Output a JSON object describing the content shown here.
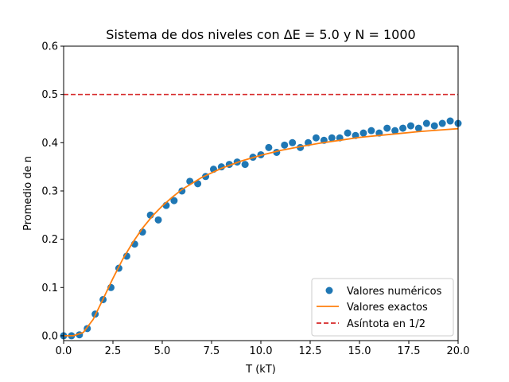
{
  "chart_data": {
    "type": "scatter",
    "title": "Sistema de dos niveles con ΔE =  5.0 y N =  1000",
    "xlabel": "T (kT)",
    "ylabel": "Promedio de n",
    "xlim": [
      0.0,
      20.0
    ],
    "ylim": [
      -0.01,
      0.6
    ],
    "xticks": [
      "0.0",
      "2.5",
      "5.0",
      "7.5",
      "10.0",
      "12.5",
      "15.0",
      "17.5",
      "20.0"
    ],
    "yticks": [
      "0.0",
      "0.1",
      "0.2",
      "0.3",
      "0.4",
      "0.5",
      "0.6"
    ],
    "grid": false,
    "legend_position": "lower-right",
    "series": [
      {
        "name": "Valores numéricos",
        "kind": "markers",
        "color": "#1f77b4",
        "x": [
          0.0,
          0.4,
          0.8,
          1.2,
          1.6,
          2.0,
          2.4,
          2.8,
          3.2,
          3.6,
          4.0,
          4.4,
          4.8,
          5.2,
          5.6,
          6.0,
          6.4,
          6.8,
          7.2,
          7.6,
          8.0,
          8.4,
          8.8,
          9.2,
          9.6,
          10.0,
          10.4,
          10.8,
          11.2,
          11.6,
          12.0,
          12.4,
          12.8,
          13.2,
          13.6,
          14.0,
          14.4,
          14.8,
          15.2,
          15.6,
          16.0,
          16.4,
          16.8,
          17.2,
          17.6,
          18.0,
          18.4,
          18.8,
          19.2,
          19.6,
          20.0
        ],
        "y": [
          0.0,
          0.0,
          0.002,
          0.015,
          0.045,
          0.075,
          0.1,
          0.14,
          0.165,
          0.19,
          0.215,
          0.25,
          0.24,
          0.27,
          0.28,
          0.3,
          0.32,
          0.315,
          0.33,
          0.345,
          0.35,
          0.355,
          0.36,
          0.355,
          0.37,
          0.375,
          0.39,
          0.38,
          0.395,
          0.4,
          0.39,
          0.4,
          0.41,
          0.405,
          0.41,
          0.41,
          0.42,
          0.415,
          0.42,
          0.425,
          0.42,
          0.43,
          0.425,
          0.43,
          0.435,
          0.43,
          0.44,
          0.435,
          0.44,
          0.445,
          0.44
        ]
      },
      {
        "name": "Valores exactos",
        "kind": "line",
        "color": "#ff7f0e",
        "x": [
          0.05,
          0.5,
          1.0,
          1.5,
          2.0,
          2.5,
          3.0,
          3.5,
          4.0,
          4.5,
          5.0,
          5.5,
          6.0,
          7.0,
          8.0,
          9.0,
          10.0,
          11.0,
          12.0,
          13.0,
          14.0,
          15.0,
          16.0,
          17.0,
          18.0,
          19.0,
          20.0
        ],
        "y": [
          0.0,
          0.0,
          0.007,
          0.034,
          0.076,
          0.119,
          0.159,
          0.193,
          0.223,
          0.248,
          0.269,
          0.287,
          0.303,
          0.328,
          0.347,
          0.362,
          0.374,
          0.384,
          0.392,
          0.399,
          0.405,
          0.411,
          0.415,
          0.419,
          0.423,
          0.426,
          0.429
        ]
      },
      {
        "name": "Asíntota en 1/2",
        "kind": "dashed-hline",
        "color": "#d62728",
        "y": 0.5
      }
    ]
  }
}
